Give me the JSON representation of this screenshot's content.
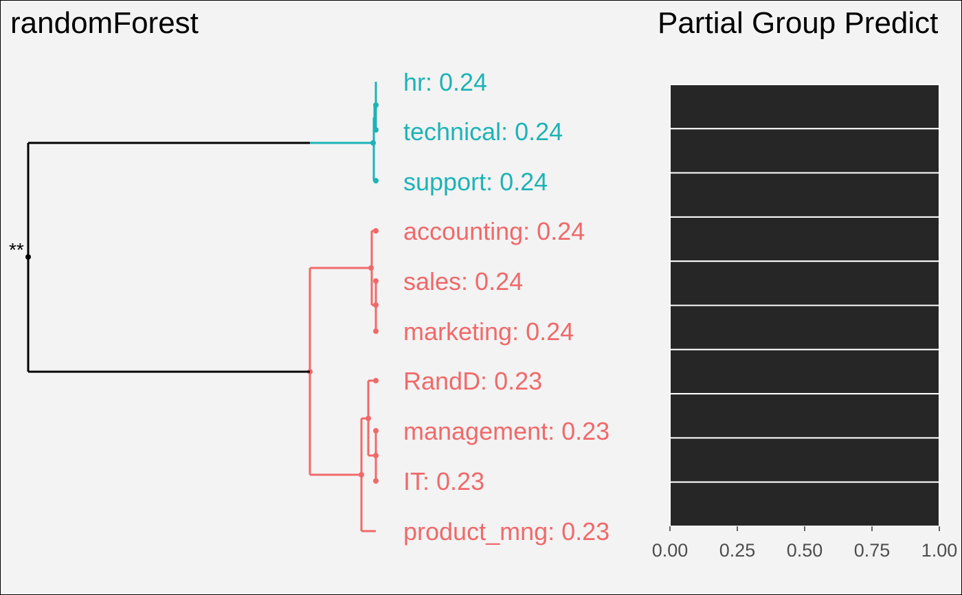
{
  "colors": {
    "background": "#f3f3f3",
    "group_a": "#1db3b7",
    "group_b": "#f0696a",
    "root": "#000000",
    "bar": "#262626",
    "bar_separator": "#ffffff",
    "tick_text": "#4d4d4d"
  },
  "chart_data": [
    {
      "type": "dendrogram",
      "title": "randomForest",
      "leaves": [
        {
          "name": "hr",
          "value": 0.24,
          "label": "hr: 0.24",
          "group": "a"
        },
        {
          "name": "technical",
          "value": 0.24,
          "label": "technical: 0.24",
          "group": "a"
        },
        {
          "name": "support",
          "value": 0.24,
          "label": "support: 0.24",
          "group": "a"
        },
        {
          "name": "accounting",
          "value": 0.24,
          "label": "accounting: 0.24",
          "group": "b"
        },
        {
          "name": "sales",
          "value": 0.24,
          "label": "sales: 0.24",
          "group": "b"
        },
        {
          "name": "marketing",
          "value": 0.24,
          "label": "marketing: 0.24",
          "group": "b"
        },
        {
          "name": "RandD",
          "value": 0.23,
          "label": "RandD: 0.23",
          "group": "b"
        },
        {
          "name": "management",
          "value": 0.23,
          "label": "management: 0.23",
          "group": "b"
        },
        {
          "name": "IT",
          "value": 0.23,
          "label": "IT: 0.23",
          "group": "b"
        },
        {
          "name": "product_mng",
          "value": 0.23,
          "label": "product_mng: 0.23",
          "group": "b"
        }
      ],
      "root_significance": "**"
    },
    {
      "type": "bar",
      "orientation": "horizontal",
      "title": "Partial Group Predict",
      "categories": [
        "hr",
        "technical",
        "support",
        "accounting",
        "sales",
        "marketing",
        "RandD",
        "management",
        "IT",
        "product_mng"
      ],
      "values": [
        1,
        1,
        1,
        1,
        1,
        1,
        1,
        1,
        1,
        1
      ],
      "xlim": [
        0,
        1
      ],
      "xticks": [
        "0.00",
        "0.25",
        "0.50",
        "0.75",
        "1.00"
      ],
      "xtick_values": [
        0,
        0.25,
        0.5,
        0.75,
        1
      ],
      "grid": true
    }
  ]
}
